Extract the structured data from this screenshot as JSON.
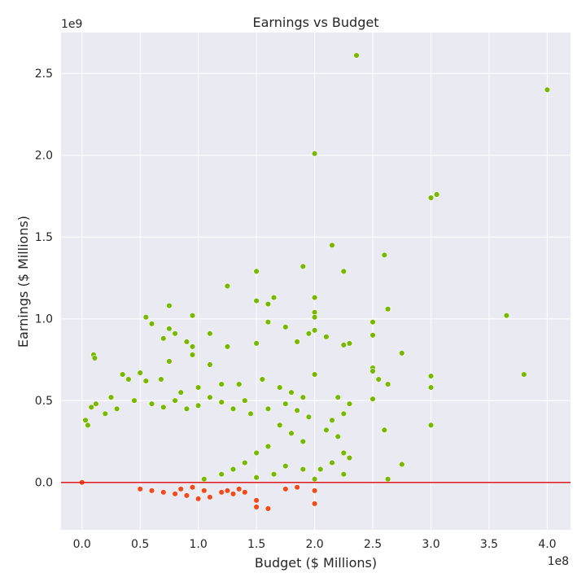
{
  "chart_data": {
    "type": "scatter",
    "title": "Earnings vs Budget",
    "xlabel": "Budget ($ Millions)",
    "ylabel": "Earnings ($ Millions)",
    "x_exponent_label": "1e8",
    "y_exponent_label": "1e9",
    "x_scale": 100000000,
    "y_scale": 1000000000,
    "xlim": [
      -0.18,
      4.2
    ],
    "ylim": [
      -0.29,
      2.75
    ],
    "xticks": [
      0.0,
      0.5,
      1.0,
      1.5,
      2.0,
      2.5,
      3.0,
      3.5,
      4.0
    ],
    "xtick_labels": [
      "0.0",
      "0.5",
      "1.0",
      "1.5",
      "2.0",
      "2.5",
      "3.0",
      "3.5",
      "4.0"
    ],
    "yticks": [
      0.0,
      0.5,
      1.0,
      1.5,
      2.0,
      2.5
    ],
    "ytick_labels": [
      "0.0",
      "0.5",
      "1.0",
      "1.5",
      "2.0",
      "2.5"
    ],
    "grid": true,
    "reference_line": {
      "y": 0,
      "color": "#e31a1c"
    },
    "colors": {
      "profit": "#7ab800",
      "loss": "#f04a1d",
      "background": "#eaeaf2",
      "grid": "#ffffff"
    },
    "series": [
      {
        "color": "#7ab800",
        "points": [
          [
            2.36,
            2.61
          ],
          [
            4.0,
            2.4
          ],
          [
            2.0,
            2.01
          ],
          [
            3.05,
            1.76
          ],
          [
            3.0,
            1.74
          ],
          [
            2.15,
            1.45
          ],
          [
            2.6,
            1.39
          ],
          [
            1.9,
            1.32
          ],
          [
            1.5,
            1.29
          ],
          [
            2.25,
            1.29
          ],
          [
            1.25,
            1.2
          ],
          [
            1.65,
            1.13
          ],
          [
            2.0,
            1.13
          ],
          [
            1.5,
            1.11
          ],
          [
            1.6,
            1.09
          ],
          [
            0.75,
            1.08
          ],
          [
            2.63,
            1.06
          ],
          [
            2.0,
            1.04
          ],
          [
            0.95,
            1.02
          ],
          [
            0.55,
            1.01
          ],
          [
            3.65,
            1.02
          ],
          [
            2.0,
            1.01
          ],
          [
            0.6,
            0.97
          ],
          [
            1.6,
            0.98
          ],
          [
            2.5,
            0.98
          ],
          [
            0.75,
            0.94
          ],
          [
            1.75,
            0.95
          ],
          [
            1.95,
            0.91
          ],
          [
            2.0,
            0.93
          ],
          [
            1.1,
            0.91
          ],
          [
            0.8,
            0.91
          ],
          [
            2.5,
            0.9
          ],
          [
            2.1,
            0.89
          ],
          [
            0.7,
            0.88
          ],
          [
            1.5,
            0.85
          ],
          [
            2.25,
            0.84
          ],
          [
            2.3,
            0.85
          ],
          [
            0.9,
            0.86
          ],
          [
            1.85,
            0.86
          ],
          [
            0.95,
            0.83
          ],
          [
            1.25,
            0.83
          ],
          [
            2.75,
            0.79
          ],
          [
            0.1,
            0.78
          ],
          [
            0.11,
            0.76
          ],
          [
            0.95,
            0.78
          ],
          [
            0.75,
            0.74
          ],
          [
            1.1,
            0.72
          ],
          [
            3.8,
            0.66
          ],
          [
            3.0,
            0.65
          ],
          [
            2.0,
            0.66
          ],
          [
            2.5,
            0.7
          ],
          [
            2.5,
            0.68
          ],
          [
            2.55,
            0.63
          ],
          [
            2.63,
            0.6
          ],
          [
            3.0,
            0.58
          ],
          [
            2.5,
            0.51
          ],
          [
            2.6,
            0.32
          ],
          [
            3.0,
            0.35
          ],
          [
            2.75,
            0.11
          ],
          [
            2.63,
            0.02
          ],
          [
            0.35,
            0.66
          ],
          [
            0.4,
            0.63
          ],
          [
            0.5,
            0.67
          ],
          [
            0.55,
            0.62
          ],
          [
            0.68,
            0.63
          ],
          [
            0.85,
            0.55
          ],
          [
            1.0,
            0.58
          ],
          [
            1.2,
            0.6
          ],
          [
            1.35,
            0.6
          ],
          [
            1.55,
            0.63
          ],
          [
            1.7,
            0.58
          ],
          [
            1.8,
            0.55
          ],
          [
            1.9,
            0.52
          ],
          [
            2.2,
            0.52
          ],
          [
            2.3,
            0.48
          ],
          [
            2.25,
            0.42
          ],
          [
            2.15,
            0.38
          ],
          [
            2.1,
            0.32
          ],
          [
            2.2,
            0.28
          ],
          [
            2.25,
            0.18
          ],
          [
            2.15,
            0.12
          ],
          [
            2.05,
            0.08
          ],
          [
            2.3,
            0.15
          ],
          [
            2.25,
            0.05
          ],
          [
            2.0,
            0.02
          ],
          [
            0.03,
            0.38
          ],
          [
            0.05,
            0.35
          ],
          [
            0.08,
            0.46
          ],
          [
            0.12,
            0.48
          ],
          [
            0.2,
            0.42
          ],
          [
            0.25,
            0.52
          ],
          [
            0.3,
            0.45
          ],
          [
            0.45,
            0.5
          ],
          [
            0.6,
            0.48
          ],
          [
            0.7,
            0.46
          ],
          [
            0.8,
            0.5
          ],
          [
            0.9,
            0.45
          ],
          [
            1.0,
            0.47
          ],
          [
            1.1,
            0.52
          ],
          [
            1.2,
            0.49
          ],
          [
            1.3,
            0.45
          ],
          [
            1.4,
            0.5
          ],
          [
            1.45,
            0.42
          ],
          [
            1.6,
            0.45
          ],
          [
            1.75,
            0.48
          ],
          [
            1.85,
            0.44
          ],
          [
            1.95,
            0.4
          ],
          [
            1.7,
            0.35
          ],
          [
            1.8,
            0.3
          ],
          [
            1.9,
            0.25
          ],
          [
            1.6,
            0.22
          ],
          [
            1.5,
            0.18
          ],
          [
            1.4,
            0.12
          ],
          [
            1.3,
            0.08
          ],
          [
            1.2,
            0.05
          ],
          [
            1.75,
            0.1
          ],
          [
            1.65,
            0.05
          ],
          [
            1.9,
            0.08
          ],
          [
            1.5,
            0.03
          ],
          [
            1.05,
            0.02
          ]
        ]
      },
      {
        "color": "#f04a1d",
        "points": [
          [
            0.0,
            0.0
          ],
          [
            1.5,
            -0.15
          ],
          [
            1.6,
            -0.16
          ],
          [
            2.0,
            -0.13
          ],
          [
            1.5,
            -0.11
          ],
          [
            1.75,
            -0.04
          ],
          [
            1.85,
            -0.03
          ],
          [
            2.0,
            -0.05
          ],
          [
            1.4,
            -0.06
          ],
          [
            1.25,
            -0.05
          ],
          [
            1.1,
            -0.09
          ],
          [
            1.0,
            -0.1
          ],
          [
            0.9,
            -0.08
          ],
          [
            1.2,
            -0.06
          ],
          [
            1.3,
            -0.07
          ],
          [
            0.8,
            -0.07
          ],
          [
            0.7,
            -0.06
          ],
          [
            0.6,
            -0.05
          ],
          [
            0.5,
            -0.04
          ],
          [
            1.35,
            -0.04
          ],
          [
            1.05,
            -0.05
          ],
          [
            0.95,
            -0.03
          ],
          [
            0.85,
            -0.04
          ]
        ]
      }
    ]
  }
}
